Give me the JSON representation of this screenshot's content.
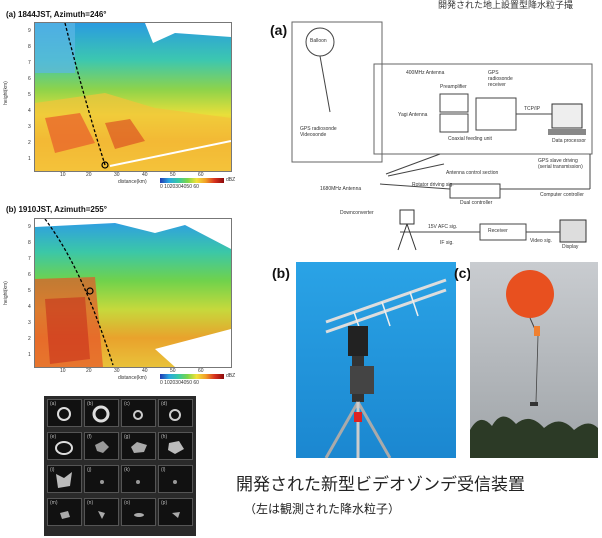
{
  "header": {
    "top_right_text": "開発された地上設置型降水粒子撮"
  },
  "radar_a": {
    "title": "(a) 1844JST, Azimuth=246°",
    "ylabel": "height(km)",
    "xlabel": "distance(km)",
    "yticks": [
      "9",
      "8",
      "7",
      "6",
      "5",
      "4",
      "3",
      "2",
      "1"
    ],
    "xticks": [
      "10",
      "20",
      "30",
      "40",
      "50",
      "60"
    ],
    "legend_ticks": "0 1020304050 60",
    "legend_unit": "dBZ"
  },
  "radar_b": {
    "title": "(b) 1910JST, Azimuth=255°",
    "ylabel": "height(km)",
    "xlabel": "distance(km)",
    "yticks": [
      "9",
      "8",
      "7",
      "6",
      "5",
      "4",
      "3",
      "2",
      "1"
    ],
    "xticks": [
      "10",
      "20",
      "30",
      "40",
      "50",
      "60"
    ],
    "legend_ticks": "0 1020304050 60",
    "legend_unit": "dBZ"
  },
  "particle_grid": {
    "labels": [
      "(a)",
      "(b)",
      "(c)",
      "(d)",
      "(e)",
      "(f)",
      "(g)",
      "(h)",
      "(i)",
      "(j)",
      "(k)",
      "(l)",
      "(m)",
      "(n)",
      "(o)",
      "(p)"
    ]
  },
  "diagram": {
    "label": "(a)",
    "balloon": "Balloon",
    "radiosonde": "GPS radiosonde\nVideosonde",
    "antenna_400": "400MHz Antenna",
    "preamp": "Preamplifier",
    "yagi": "Yagi Antenna",
    "gps_receiver": "GPS\nradiosonde\nreceiver",
    "coaxial": "Coaxial feeding unit",
    "tcpip": "TCP/IP",
    "data_processor": "Data processor",
    "gps_slave": "GPS slave driving\n(serial transmission)",
    "antenna_control": "Antenna control section",
    "rotator_signal": "Rotator driving sig.",
    "antenna_1680": "1680MHz Antenna",
    "computer_controller": "Computer controller",
    "dual_controller": "Dual controller",
    "downconverter": "Downconverter",
    "afc": "15V   AFC sig.",
    "if_sig": "IF sig.",
    "receiver": "Receiver",
    "video_sig": "Video sig.",
    "display": "Display"
  },
  "photos": {
    "b_label": "(b)",
    "c_label": "(c)"
  },
  "caption": {
    "line1": "開発された新型ビデオゾンデ受信装置",
    "line2": "（左は観測された降水粒子）"
  }
}
